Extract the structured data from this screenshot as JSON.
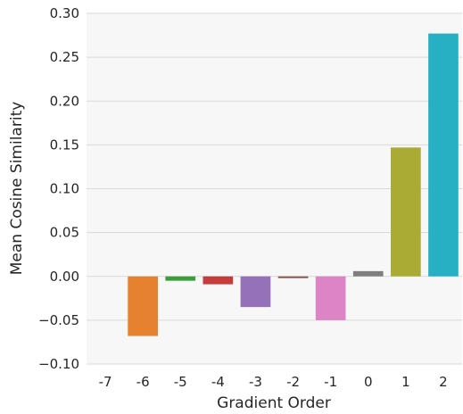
{
  "chart_data": {
    "type": "bar",
    "title": "",
    "xlabel": "Gradient Order",
    "ylabel": "Mean Cosine Similarity",
    "categories": [
      "-7",
      "-6",
      "-5",
      "-4",
      "-3",
      "-2",
      "-1",
      "0",
      "1",
      "2"
    ],
    "values": [
      0.0,
      -0.068,
      -0.005,
      -0.009,
      -0.035,
      -0.002,
      -0.05,
      0.006,
      0.147,
      0.277
    ],
    "colors": [
      "#1f77b4",
      "#e6812f",
      "#3a9e3a",
      "#c43c3c",
      "#9471b8",
      "#8c564b",
      "#dd84c6",
      "#7f7f7f",
      "#a9ab35",
      "#27b0c4"
    ],
    "ylim": [
      -0.1,
      0.3
    ],
    "yticks": [
      "−0.10",
      "−0.05",
      "0.00",
      "0.05",
      "0.10",
      "0.15",
      "0.20",
      "0.25",
      "0.30"
    ],
    "grid": true,
    "background": "#f7f7f7",
    "grid_color": "#d9d9d9"
  }
}
